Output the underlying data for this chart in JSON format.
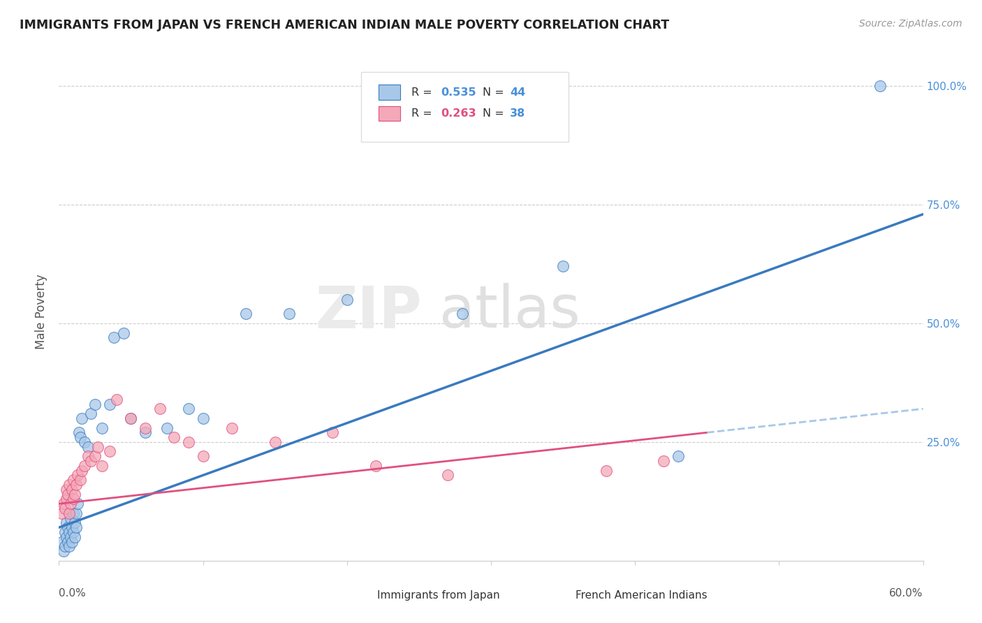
{
  "title": "IMMIGRANTS FROM JAPAN VS FRENCH AMERICAN INDIAN MALE POVERTY CORRELATION CHART",
  "source": "Source: ZipAtlas.com",
  "ylabel": "Male Poverty",
  "xlim": [
    0.0,
    0.6
  ],
  "ylim": [
    0.0,
    1.05
  ],
  "color_blue": "#a8c8e8",
  "color_pink": "#f4a8b8",
  "line_blue": "#3a7abf",
  "line_pink": "#e05080",
  "line_dashed_color": "#a8c8e8",
  "japan_x": [
    0.002,
    0.003,
    0.004,
    0.004,
    0.005,
    0.005,
    0.006,
    0.006,
    0.007,
    0.007,
    0.008,
    0.008,
    0.009,
    0.009,
    0.01,
    0.01,
    0.011,
    0.011,
    0.012,
    0.012,
    0.013,
    0.014,
    0.015,
    0.016,
    0.018,
    0.02,
    0.022,
    0.025,
    0.03,
    0.035,
    0.038,
    0.045,
    0.05,
    0.06,
    0.075,
    0.09,
    0.1,
    0.13,
    0.16,
    0.2,
    0.28,
    0.35,
    0.43,
    0.57
  ],
  "japan_y": [
    0.04,
    0.02,
    0.03,
    0.06,
    0.05,
    0.08,
    0.04,
    0.07,
    0.03,
    0.06,
    0.05,
    0.09,
    0.04,
    0.07,
    0.06,
    0.1,
    0.08,
    0.05,
    0.1,
    0.07,
    0.12,
    0.27,
    0.26,
    0.3,
    0.25,
    0.24,
    0.31,
    0.33,
    0.28,
    0.33,
    0.47,
    0.48,
    0.3,
    0.27,
    0.28,
    0.32,
    0.3,
    0.52,
    0.52,
    0.55,
    0.52,
    0.62,
    0.22,
    1.0
  ],
  "french_x": [
    0.002,
    0.003,
    0.004,
    0.005,
    0.005,
    0.006,
    0.007,
    0.007,
    0.008,
    0.009,
    0.01,
    0.01,
    0.011,
    0.012,
    0.013,
    0.015,
    0.016,
    0.018,
    0.02,
    0.022,
    0.025,
    0.027,
    0.03,
    0.035,
    0.04,
    0.05,
    0.06,
    0.07,
    0.08,
    0.09,
    0.1,
    0.12,
    0.15,
    0.19,
    0.22,
    0.27,
    0.38,
    0.42
  ],
  "french_y": [
    0.1,
    0.12,
    0.11,
    0.13,
    0.15,
    0.14,
    0.1,
    0.16,
    0.12,
    0.15,
    0.13,
    0.17,
    0.14,
    0.16,
    0.18,
    0.17,
    0.19,
    0.2,
    0.22,
    0.21,
    0.22,
    0.24,
    0.2,
    0.23,
    0.34,
    0.3,
    0.28,
    0.32,
    0.26,
    0.25,
    0.22,
    0.28,
    0.25,
    0.27,
    0.2,
    0.18,
    0.19,
    0.21
  ],
  "blue_line_x0": 0.0,
  "blue_line_y0": 0.07,
  "blue_line_x1": 0.6,
  "blue_line_y1": 0.73,
  "pink_line_x0": 0.0,
  "pink_line_y0": 0.12,
  "pink_line_x1": 0.45,
  "pink_line_y1": 0.27,
  "dashed_line_x0": 0.45,
  "dashed_line_y0": 0.27,
  "dashed_line_x1": 0.6,
  "dashed_line_y1": 0.32
}
